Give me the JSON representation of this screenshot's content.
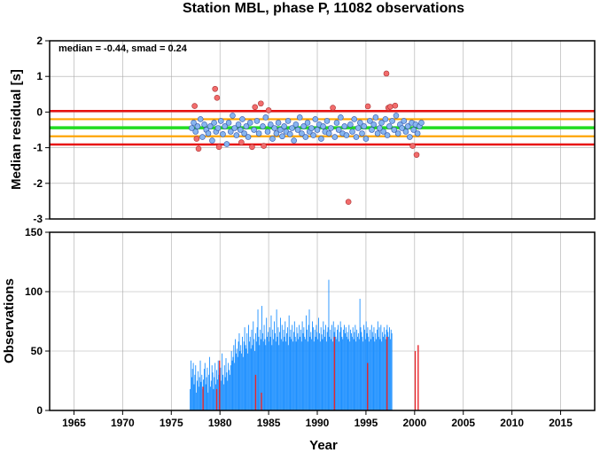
{
  "title": "Station MBL, phase P, 11082 observations",
  "colors": {
    "point_normal": "#87b5ef",
    "point_outlier": "#f26c6c",
    "bar_normal": "#1e90ff",
    "bar_outlier": "#e8262b",
    "median_line": "#22dd22",
    "mad_line": "#ffa500",
    "limit_line": "#e81111",
    "grid": "#aaaaaa"
  },
  "chart_data": [
    {
      "type": "scatter",
      "ylabel": "Median residual [s]",
      "annotation": "median = -0.44, smad = 0.24",
      "xlim": [
        1962.5,
        2018.5
      ],
      "ylim": [
        -3,
        2
      ],
      "yticks": [
        2,
        1,
        0,
        -1,
        -2,
        -3
      ],
      "xgrid": [
        1965,
        1970,
        1975,
        1980,
        1985,
        1990,
        1995,
        2000,
        2005,
        2010,
        2015
      ],
      "grid": true,
      "hlines": [
        {
          "y": 0.03,
          "kind": "limit"
        },
        {
          "y": -0.2,
          "kind": "mad"
        },
        {
          "y": -0.44,
          "kind": "median"
        },
        {
          "y": -0.68,
          "kind": "mad"
        },
        {
          "y": -0.91,
          "kind": "limit"
        }
      ],
      "points_outlier": [
        [
          1977.4,
          0.17
        ],
        [
          1977.6,
          -0.75
        ],
        [
          1977.8,
          -1.03
        ],
        [
          1979.5,
          0.65
        ],
        [
          1979.7,
          0.4
        ],
        [
          1979.9,
          -0.98
        ],
        [
          1982.2,
          -0.85
        ],
        [
          1983.3,
          -0.98
        ],
        [
          1983.6,
          0.14
        ],
        [
          1984.2,
          0.24
        ],
        [
          1984.5,
          -0.95
        ],
        [
          1985.0,
          0.05
        ],
        [
          1991.6,
          0.12
        ],
        [
          1993.2,
          -2.52
        ],
        [
          1995.2,
          0.16
        ],
        [
          1997.1,
          1.08
        ],
        [
          1997.3,
          0.12
        ],
        [
          1997.5,
          0.15
        ],
        [
          1998.0,
          0.18
        ],
        [
          1999.8,
          -0.95
        ],
        [
          2000.2,
          -1.2
        ]
      ],
      "points_normal": [
        [
          1977.1,
          -0.45
        ],
        [
          1977.3,
          -0.3
        ],
        [
          1977.5,
          -0.55
        ],
        [
          1977.7,
          -0.4
        ],
        [
          1978.0,
          -0.2
        ],
        [
          1978.2,
          -0.7
        ],
        [
          1978.4,
          -0.35
        ],
        [
          1978.6,
          -0.5
        ],
        [
          1978.8,
          -0.6
        ],
        [
          1979.0,
          -0.4
        ],
        [
          1979.2,
          -0.8
        ],
        [
          1979.4,
          -0.3
        ],
        [
          1979.6,
          -0.55
        ],
        [
          1979.8,
          -0.45
        ],
        [
          1980.1,
          -0.25
        ],
        [
          1980.3,
          -0.62
        ],
        [
          1980.5,
          -0.4
        ],
        [
          1980.7,
          -0.9
        ],
        [
          1980.9,
          -0.3
        ],
        [
          1981.1,
          -0.55
        ],
        [
          1981.3,
          -0.1
        ],
        [
          1981.5,
          -0.45
        ],
        [
          1981.7,
          -0.65
        ],
        [
          1981.9,
          -0.35
        ],
        [
          1982.1,
          -0.5
        ],
        [
          1982.3,
          -0.2
        ],
        [
          1982.5,
          -0.6
        ],
        [
          1982.7,
          -0.4
        ],
        [
          1982.9,
          -0.7
        ],
        [
          1983.1,
          -0.3
        ],
        [
          1983.5,
          -0.5
        ],
        [
          1983.8,
          -0.25
        ],
        [
          1984.0,
          -0.6
        ],
        [
          1984.4,
          -0.4
        ],
        [
          1984.7,
          -0.15
        ],
        [
          1984.9,
          -0.55
        ],
        [
          1985.2,
          -0.35
        ],
        [
          1985.4,
          -0.75
        ],
        [
          1985.6,
          -0.45
        ],
        [
          1985.8,
          -0.6
        ],
        [
          1986.0,
          -0.3
        ],
        [
          1986.2,
          -0.5
        ],
        [
          1986.4,
          -0.68
        ],
        [
          1986.6,
          -0.4
        ],
        [
          1986.8,
          -0.55
        ],
        [
          1987.0,
          -0.25
        ],
        [
          1987.2,
          -0.62
        ],
        [
          1987.4,
          -0.45
        ],
        [
          1987.6,
          -0.8
        ],
        [
          1987.8,
          -0.35
        ],
        [
          1988.0,
          -0.5
        ],
        [
          1988.2,
          -0.15
        ],
        [
          1988.4,
          -0.6
        ],
        [
          1988.6,
          -0.4
        ],
        [
          1988.8,
          -0.7
        ],
        [
          1989.0,
          -0.3
        ],
        [
          1989.2,
          -0.55
        ],
        [
          1989.4,
          -0.45
        ],
        [
          1989.6,
          -0.65
        ],
        [
          1989.8,
          -0.2
        ],
        [
          1990.0,
          -0.5
        ],
        [
          1990.2,
          -0.35
        ],
        [
          1990.4,
          -0.75
        ],
        [
          1990.6,
          -0.4
        ],
        [
          1990.8,
          -0.55
        ],
        [
          1991.0,
          -0.25
        ],
        [
          1991.2,
          -0.6
        ],
        [
          1991.4,
          -0.45
        ],
        [
          1991.8,
          -0.7
        ],
        [
          1992.0,
          -0.3
        ],
        [
          1992.2,
          -0.5
        ],
        [
          1992.4,
          -0.15
        ],
        [
          1992.6,
          -0.6
        ],
        [
          1992.8,
          -0.4
        ],
        [
          1993.0,
          -0.65
        ],
        [
          1993.4,
          -0.35
        ],
        [
          1993.6,
          -0.55
        ],
        [
          1993.8,
          -0.2
        ],
        [
          1994.0,
          -0.7
        ],
        [
          1994.2,
          -0.45
        ],
        [
          1994.4,
          -0.3
        ],
        [
          1994.6,
          -0.6
        ],
        [
          1994.8,
          -0.4
        ],
        [
          1995.0,
          -0.75
        ],
        [
          1995.4,
          -0.25
        ],
        [
          1995.6,
          -0.5
        ],
        [
          1995.8,
          -0.35
        ],
        [
          1996.0,
          -0.15
        ],
        [
          1996.2,
          -0.6
        ],
        [
          1996.4,
          -0.45
        ],
        [
          1996.6,
          -0.3
        ],
        [
          1996.8,
          -0.55
        ],
        [
          1997.0,
          -0.2
        ],
        [
          1997.2,
          -0.65
        ],
        [
          1997.4,
          -0.4
        ],
        [
          1997.7,
          -0.25
        ],
        [
          1997.9,
          -0.5
        ],
        [
          1998.1,
          -0.1
        ],
        [
          1998.3,
          -0.6
        ],
        [
          1998.5,
          -0.35
        ],
        [
          1998.7,
          -0.45
        ],
        [
          1998.9,
          -0.25
        ],
        [
          1999.1,
          -0.55
        ],
        [
          1999.3,
          -0.4
        ],
        [
          1999.5,
          -0.7
        ],
        [
          1999.7,
          -0.3
        ],
        [
          1999.9,
          -0.5
        ],
        [
          2000.1,
          -0.35
        ],
        [
          2000.3,
          -0.6
        ],
        [
          2000.5,
          -0.4
        ],
        [
          2000.7,
          -0.3
        ]
      ]
    },
    {
      "type": "bar",
      "xlabel": "Year",
      "ylabel": "Observations",
      "xlim": [
        1962.5,
        2018.5
      ],
      "ylim": [
        0,
        150
      ],
      "yticks": [
        0,
        50,
        100,
        150
      ],
      "xticks": [
        1965,
        1970,
        1975,
        1980,
        1985,
        1990,
        1995,
        2000,
        2005,
        2010,
        2015
      ],
      "grid": true,
      "x_start": 1976.9,
      "bin_width": 0.08,
      "values": [
        18,
        42,
        28,
        35,
        40,
        22,
        30,
        38,
        15,
        25,
        33,
        20,
        28,
        42,
        24,
        30,
        18,
        26,
        35,
        40,
        22,
        28,
        36,
        15,
        30,
        45,
        20,
        25,
        38,
        32,
        18,
        28,
        40,
        22,
        34,
        26,
        42,
        30,
        20,
        36,
        25,
        48,
        30,
        22,
        38,
        28,
        44,
        32,
        25,
        40,
        34,
        30,
        38,
        50,
        42,
        45,
        55,
        40,
        60,
        48,
        52,
        45,
        58,
        65,
        50,
        55,
        48,
        62,
        45,
        58,
        70,
        55,
        52,
        65,
        48,
        72,
        58,
        62,
        52,
        68,
        55,
        75,
        60,
        50,
        65,
        58,
        70,
        85,
        62,
        55,
        68,
        60,
        88,
        65,
        58,
        72,
        60,
        55,
        78,
        62,
        66,
        58,
        70,
        62,
        80,
        55,
        68,
        60,
        75,
        65,
        58,
        85,
        62,
        70,
        55,
        66,
        78,
        60,
        72,
        58,
        68,
        62,
        75,
        58,
        65,
        70,
        55,
        80,
        62,
        68,
        60,
        72,
        58,
        66,
        75,
        62,
        58,
        70,
        65,
        60,
        72,
        62,
        68,
        58,
        75,
        65,
        70,
        62,
        60,
        80,
        68,
        58,
        72,
        85,
        62,
        66,
        60,
        75,
        70,
        58,
        68,
        62,
        72,
        66,
        60,
        78,
        65,
        58,
        70,
        64,
        60,
        75,
        68,
        62,
        72,
        58,
        66,
        70,
        110,
        62,
        68,
        60,
        72,
        58,
        75,
        66,
        70,
        62,
        60,
        68,
        72,
        58,
        66,
        75,
        70,
        62,
        60,
        68,
        72,
        65,
        70,
        62,
        66,
        60,
        72,
        58,
        68,
        65,
        62,
        70,
        60,
        66,
        72,
        58,
        68,
        62,
        65,
        60,
        94,
        70,
        66,
        62,
        58,
        72,
        68,
        60,
        75,
        65,
        70,
        62,
        58,
        68,
        60,
        72,
        66,
        62,
        70,
        58,
        65,
        60,
        68,
        75,
        62,
        70,
        60,
        72,
        58,
        66,
        62,
        70,
        64,
        60,
        68,
        72,
        66,
        62,
        70,
        60,
        68,
        65
      ],
      "outlier_bars": [
        [
          1978.2,
          20
        ],
        [
          1979.6,
          18
        ],
        [
          1979.9,
          42
        ],
        [
          1983.6,
          30
        ],
        [
          1984.2,
          15
        ],
        [
          1991.7,
          62
        ],
        [
          1995.1,
          40
        ],
        [
          1997.1,
          62
        ],
        [
          2000.0,
          50
        ],
        [
          2000.3,
          55
        ]
      ]
    }
  ]
}
